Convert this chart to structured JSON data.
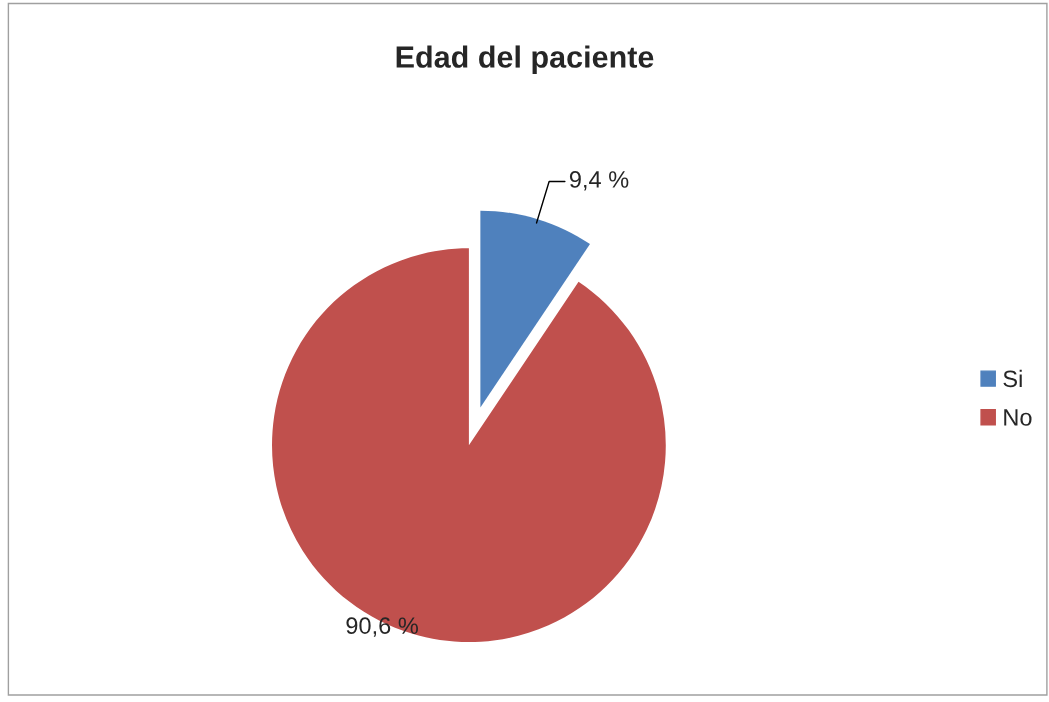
{
  "chart_data": {
    "type": "pie",
    "title": "Edad del paciente",
    "categories": [
      "Si",
      "No"
    ],
    "values": [
      9.4,
      90.6
    ],
    "colors": [
      "#4f81bd",
      "#c0504d"
    ],
    "value_labels": [
      "9,4 %",
      "90,6 %"
    ],
    "legend": "right"
  }
}
